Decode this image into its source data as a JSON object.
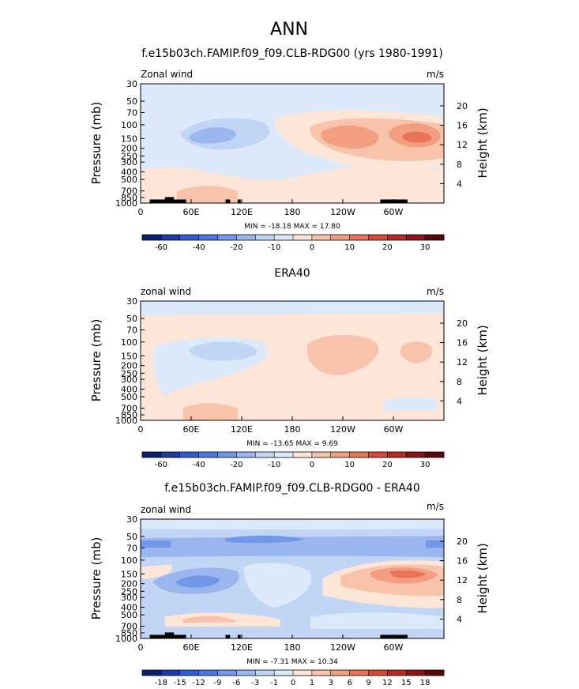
{
  "figure": {
    "title": "ANN"
  },
  "colors": {
    "scale": [
      "#0a1f6e",
      "#1d3aa3",
      "#2f5ed2",
      "#4b78e0",
      "#7097e8",
      "#9bb6ef",
      "#c1d6f5",
      "#dbe9fa",
      "#fde5d8",
      "#f8c3aa",
      "#f39e80",
      "#e97457",
      "#d64a35",
      "#b52a22",
      "#8c1414",
      "#5d0808"
    ]
  },
  "chart_data": [
    {
      "type": "contour",
      "title": "f.e15b03ch.FAMIP.f09_f09.CLB-RDG00 (yrs 1980-1991)",
      "variable_label": "Zonal wind",
      "units": "m/s",
      "ylabel": "Pressure (mb)",
      "ylabel_right": "Height (km)",
      "x_ticks": [
        "0",
        "60E",
        "120E",
        "180",
        "120W",
        "60W"
      ],
      "y_ticks": [
        30,
        50,
        70,
        100,
        150,
        200,
        250,
        300,
        400,
        500,
        700,
        850,
        1000
      ],
      "y_ticks_right": [
        20,
        16,
        12,
        8,
        4
      ],
      "min": -18.18,
      "max": 17.8,
      "minmax_text": "MIN = -18.18   MAX = 17.80",
      "colorbar_ticks": [
        "-60",
        "-40",
        "-20",
        "-10",
        "0",
        "10",
        "20",
        "30"
      ],
      "grid": false
    },
    {
      "type": "contour",
      "title": "ERA40",
      "variable_label": "zonal wind",
      "units": "m/s",
      "ylabel": "Pressure (mb)",
      "ylabel_right": "Height (km)",
      "x_ticks": [
        "0",
        "60E",
        "120E",
        "180",
        "120W",
        "60W"
      ],
      "y_ticks": [
        30,
        50,
        70,
        100,
        150,
        200,
        250,
        300,
        400,
        500,
        700,
        850,
        1000
      ],
      "y_ticks_right": [
        20,
        16,
        12,
        8,
        4
      ],
      "min": -13.65,
      "max": 9.69,
      "minmax_text": "MIN = -13.65   MAX =   9.69",
      "colorbar_ticks": [
        "-60",
        "-40",
        "-20",
        "-10",
        "0",
        "10",
        "20",
        "30"
      ],
      "grid": false
    },
    {
      "type": "contour",
      "title": "f.e15b03ch.FAMIP.f09_f09.CLB-RDG00 - ERA40",
      "variable_label": "zonal wind",
      "units": "m/s",
      "ylabel": "Pressure (mb)",
      "ylabel_right": "Height (km)",
      "x_ticks": [
        "0",
        "60E",
        "120E",
        "180",
        "120W",
        "60W"
      ],
      "y_ticks": [
        30,
        50,
        70,
        100,
        150,
        200,
        250,
        300,
        400,
        500,
        700,
        850,
        1000
      ],
      "y_ticks_right": [
        20,
        16,
        12,
        8,
        4
      ],
      "min": -7.31,
      "max": 10.34,
      "minmax_text": "MIN =  -7.31   MAX =  10.34",
      "colorbar_ticks": [
        "-18",
        "-15",
        "-12",
        "-9",
        "-6",
        "-3",
        "-1",
        "0",
        "1",
        "3",
        "6",
        "9",
        "12",
        "15",
        "18"
      ],
      "grid": false
    }
  ]
}
